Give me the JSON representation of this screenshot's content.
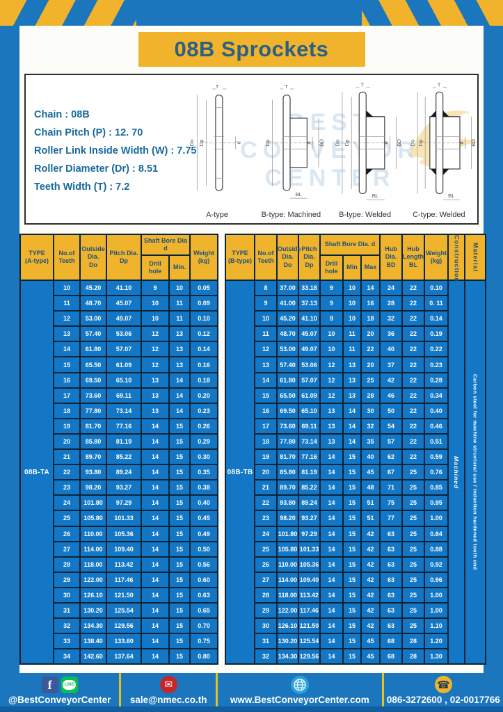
{
  "page": {
    "title": "08B Sprockets"
  },
  "specs": {
    "lines": [
      "Chain  : 08B",
      "Chain Pitch (P)  :  12. 70",
      "Roller Link Inside Width (W)  :  7.75",
      "Roller Diameter (Dr)  : 8.51",
      "Teeth Width (T)  :  7.2"
    ]
  },
  "diagram": {
    "captions": [
      "A-type",
      "B-type: Machined",
      "B-type: Welded",
      "C-type: Welded"
    ],
    "dims": {
      "t": "T",
      "dd": "Do",
      "dp": "Dp",
      "d": "d",
      "bd": "BD",
      "bl": "BL"
    },
    "watermark_lines": [
      "BEST",
      "CONVEYOR",
      "CENTER"
    ]
  },
  "tables": {
    "left": {
      "col_headers": {
        "type": "TYPE\n(A-type)",
        "teeth": "No.of\nTeeth",
        "outside_dia": "Outside\nDia.\nDo",
        "pitch_dia": "Pitch Dia.\nDp",
        "shaft_bore": "Shaft Bore Dia d",
        "drill_hole": "Drill hole",
        "min": "Min.",
        "weight": "Weight\n(kg)"
      },
      "type_value": "08B-TA",
      "rows": [
        [
          "10",
          "45.20",
          "41.10",
          "9",
          "10",
          "0.05"
        ],
        [
          "11",
          "48.70",
          "45.07",
          "10",
          "11",
          "0.09"
        ],
        [
          "12",
          "53.00",
          "49.07",
          "10",
          "11",
          "0.10"
        ],
        [
          "13",
          "57.40",
          "53.06",
          "12",
          "13",
          "0.12"
        ],
        [
          "14",
          "61.80",
          "57.07",
          "12",
          "13",
          "0.14"
        ],
        [
          "15",
          "65.50",
          "61.09",
          "12",
          "13",
          "0.16"
        ],
        [
          "16",
          "69.50",
          "65.10",
          "13",
          "14",
          "0.18"
        ],
        [
          "17",
          "73.60",
          "69.11",
          "13",
          "14",
          "0.20"
        ],
        [
          "18",
          "77.80",
          "73.14",
          "13",
          "14",
          "0.23"
        ],
        [
          "19",
          "81.70",
          "77.16",
          "14",
          "15",
          "0.26"
        ],
        [
          "20",
          "85.80",
          "81.19",
          "14",
          "15",
          "0.29"
        ],
        [
          "21",
          "89.70",
          "85.22",
          "14",
          "15",
          "0.30"
        ],
        [
          "22",
          "93.80",
          "89.24",
          "14",
          "15",
          "0.35"
        ],
        [
          "23",
          "98.20",
          "93.27",
          "14",
          "15",
          "0.38"
        ],
        [
          "24",
          "101.80",
          "97.29",
          "14",
          "15",
          "0.40"
        ],
        [
          "25",
          "105.80",
          "101.33",
          "14",
          "15",
          "0.45"
        ],
        [
          "26",
          "110.00",
          "105.36",
          "14",
          "15",
          "0.49"
        ],
        [
          "27",
          "114.00",
          "109.40",
          "14",
          "15",
          "0.50"
        ],
        [
          "28",
          "118.00",
          "113.42",
          "14",
          "15",
          "0.56"
        ],
        [
          "29",
          "122.00",
          "117.46",
          "14",
          "15",
          "0.60"
        ],
        [
          "30",
          "126.10",
          "121.50",
          "14",
          "15",
          "0.63"
        ],
        [
          "31",
          "130.20",
          "125.54",
          "14",
          "15",
          "0.65"
        ],
        [
          "32",
          "134.30",
          "129.56",
          "14",
          "15",
          "0.70"
        ],
        [
          "33",
          "138.40",
          "133.60",
          "14",
          "15",
          "0.75"
        ],
        [
          "34",
          "142.60",
          "137.64",
          "14",
          "15",
          "0.80"
        ]
      ]
    },
    "right": {
      "col_headers": {
        "type": "TYPE\n(B-type)",
        "teeth": "No.of\nTeeth",
        "outside_dia": "Outside\nDia.\nDo",
        "pitch_dia": "Pitch\nDia.\nDp",
        "shaft_bore": "Shaft Bore Dia.  d",
        "drill_hole": "Drill hole",
        "min": "Min",
        "max": "Max",
        "hub_dia": "Hub\nDia.\nBD",
        "hub_length": "Hub\nLength\nBL",
        "weight": "Weight\n(kg)",
        "construction": "Construction",
        "material": "Material"
      },
      "type_value": "08B-TB",
      "construction_value": "Machined",
      "material_value": "Carbon steel for machine structural use / Induction hardened tooth end",
      "rows": [
        [
          "8",
          "37.00",
          "33.18",
          "9",
          "10",
          "14",
          "24",
          "22",
          "0.10"
        ],
        [
          "9",
          "41.00",
          "37.13",
          "9",
          "10",
          "16",
          "28",
          "22",
          "0. 11"
        ],
        [
          "10",
          "45.20",
          "41.10",
          "9",
          "10",
          "18",
          "32",
          "22",
          "0.14"
        ],
        [
          "11",
          "48.70",
          "45.07",
          "10",
          "11",
          "20",
          "36",
          "22",
          "0.19"
        ],
        [
          "12",
          "53.00",
          "49.07",
          "10",
          "11",
          "22",
          "40",
          "22",
          "0.22"
        ],
        [
          "13",
          "57.40",
          "53.06",
          "12",
          "13",
          "20",
          "37",
          "22",
          "0.23"
        ],
        [
          "14",
          "61.80",
          "57.07",
          "12",
          "13",
          "25",
          "42",
          "22",
          "0.28"
        ],
        [
          "15",
          "65.50",
          "61.09",
          "12",
          "13",
          "28",
          "46",
          "22",
          "0.34"
        ],
        [
          "16",
          "69.50",
          "65.10",
          "13",
          "14",
          "30",
          "50",
          "22",
          "0.40"
        ],
        [
          "17",
          "73.60",
          "69.11",
          "13",
          "14",
          "32",
          "54",
          "22",
          "0.46"
        ],
        [
          "18",
          "77.80",
          "73.14",
          "13",
          "14",
          "35",
          "57",
          "22",
          "0.51"
        ],
        [
          "19",
          "81.70",
          "77.16",
          "14",
          "15",
          "40",
          "62",
          "22",
          "0.59"
        ],
        [
          "20",
          "85.80",
          "81.19",
          "14",
          "15",
          "45",
          "67",
          "25",
          "0.76"
        ],
        [
          "21",
          "89.70",
          "85.22",
          "14",
          "15",
          "48",
          "71",
          "25",
          "0.85"
        ],
        [
          "22",
          "93.80",
          "89.24",
          "14",
          "15",
          "51",
          "75",
          "25",
          "0.95"
        ],
        [
          "23",
          "98.20",
          "93.27",
          "14",
          "15",
          "51",
          "77",
          "25",
          "1.00"
        ],
        [
          "24",
          "101.80",
          "97.29",
          "14",
          "15",
          "42",
          "63",
          "25",
          "0.84"
        ],
        [
          "25",
          "105.80",
          "101.33",
          "14",
          "15",
          "42",
          "63",
          "25",
          "0.88"
        ],
        [
          "26",
          "110.00",
          "105.36",
          "14",
          "15",
          "42",
          "63",
          "25",
          "0.92"
        ],
        [
          "27",
          "114.00",
          "109.40",
          "14",
          "15",
          "42",
          "63",
          "25",
          "0.96"
        ],
        [
          "28",
          "118.00",
          "113.42",
          "14",
          "15",
          "42",
          "63",
          "25",
          "1.00"
        ],
        [
          "29",
          "122.00",
          "117.46",
          "14",
          "15",
          "42",
          "63",
          "25",
          "1.00"
        ],
        [
          "30",
          "126.10",
          "121.50",
          "14",
          "15",
          "42",
          "63",
          "25",
          "1.10"
        ],
        [
          "31",
          "130.20",
          "125.54",
          "14",
          "15",
          "45",
          "68",
          "28",
          "1.20"
        ],
        [
          "32",
          "134.30",
          "129.56",
          "14",
          "15",
          "45",
          "68",
          "28",
          "1.30"
        ]
      ]
    }
  },
  "footer": {
    "social": "@BestConveyorCenter",
    "email": "sale@nmec.co.th",
    "website": "www.BestConveyorCenter.com",
    "phone": "086-3272600 , 02-0017766",
    "icons": {
      "facebook_glyph": "f",
      "line_text": "LINE",
      "email_glyph": "✉",
      "phone_glyph": "☎"
    }
  },
  "colors": {
    "frame_blue": "#1b76bd",
    "table_cell_blue": "#1377c6",
    "accent_yellow": "#f0b32b",
    "header_text_navy": "#1d5080",
    "title_navy": "#2b6084",
    "spec_text_teal": "#17699b"
  }
}
